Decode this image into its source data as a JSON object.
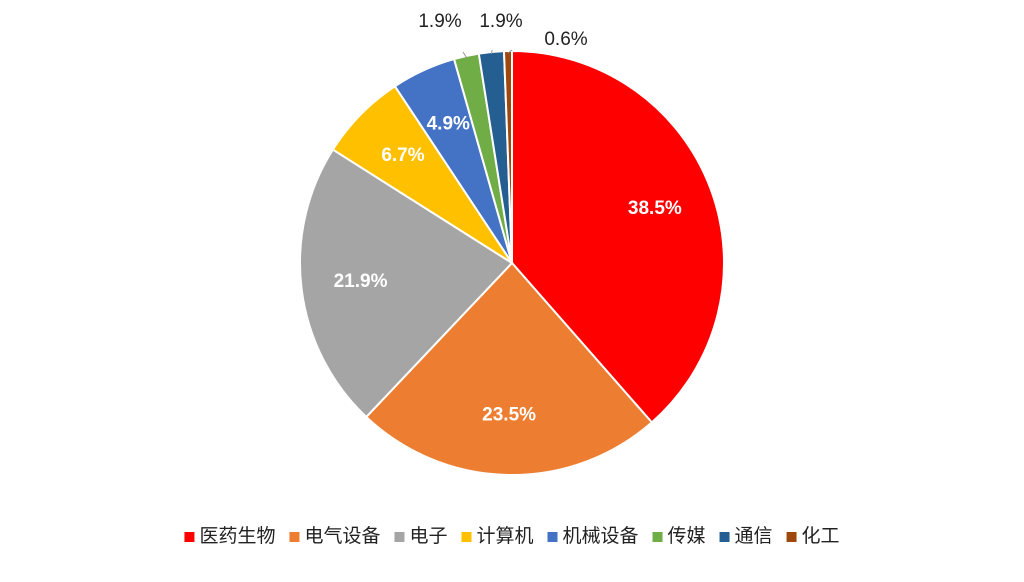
{
  "chart_data": {
    "type": "pie",
    "categories": [
      "医药生物",
      "电气设备",
      "电子",
      "计算机",
      "机械设备",
      "传媒",
      "通信",
      "化工"
    ],
    "values": [
      38.5,
      23.5,
      21.9,
      6.7,
      4.9,
      1.9,
      1.9,
      0.6
    ],
    "value_labels": [
      "38.5%",
      "23.5%",
      "21.9%",
      "6.7%",
      "4.9%",
      "1.9%",
      "1.9%",
      "0.6%"
    ],
    "colors": [
      "#ff0000",
      "#ed7d31",
      "#a5a5a5",
      "#ffc000",
      "#4472c4",
      "#70ad47",
      "#255e91",
      "#9e480e"
    ],
    "legend": "bottom"
  }
}
